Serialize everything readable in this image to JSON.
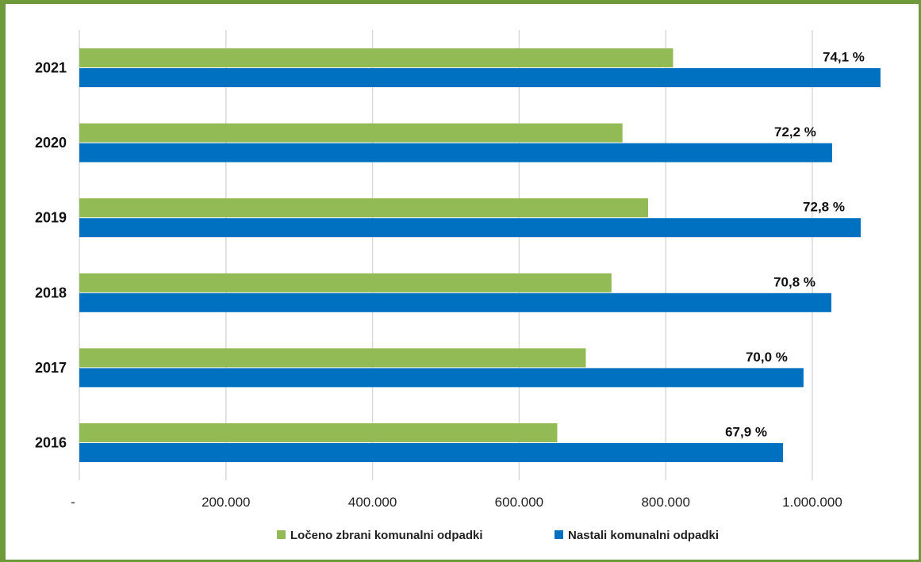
{
  "chart_data": {
    "type": "bar",
    "orientation": "horizontal",
    "categories": [
      "2021",
      "2020",
      "2019",
      "2018",
      "2017",
      "2016"
    ],
    "series": [
      {
        "name": "Ločeno zbrani komunalni odpadki",
        "color": "#92bb55",
        "values": [
          810000,
          741000,
          776000,
          726000,
          691000,
          652000
        ]
      },
      {
        "name": "Nastali komunalni odpadki",
        "color": "#0070c0",
        "values": [
          1093000,
          1027000,
          1066000,
          1026000,
          988000,
          960000
        ]
      }
    ],
    "data_labels": [
      "74,1 %",
      "72,2 %",
      "72,8 %",
      "70,8 %",
      "70,0 %",
      "67,9 %"
    ],
    "x_ticks": [
      {
        "value": 0,
        "label": "-"
      },
      {
        "value": 200000,
        "label": "200.000"
      },
      {
        "value": 400000,
        "label": "400.000"
      },
      {
        "value": 600000,
        "label": "600.000"
      },
      {
        "value": 800000,
        "label": "800.000"
      },
      {
        "value": 1000000,
        "label": "1.000.000"
      }
    ],
    "xlim": [
      0,
      1100000
    ],
    "grid": "vertical",
    "legend_position": "bottom",
    "colors": {
      "frame": "#6e9a3c",
      "grid": "#d9d9d9"
    }
  }
}
